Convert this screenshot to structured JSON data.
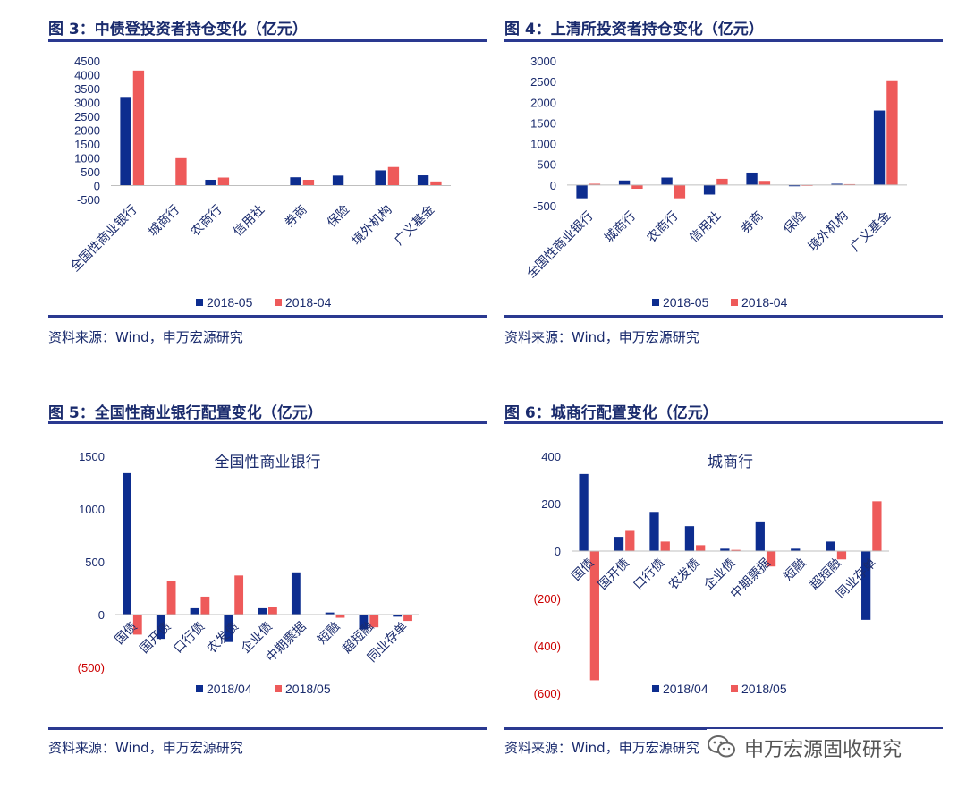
{
  "colors": {
    "series1": "#0d2d8f",
    "series2": "#ee5a5a",
    "negative_tick": "#cc0000",
    "rule": "#2a3990",
    "title": "#1a2b6d"
  },
  "charts": [
    {
      "figure_title": "图 3：中债登投资者持仓变化（亿元）",
      "source": "资料来源：Wind，申万宏源研究",
      "chart_data": {
        "type": "bar",
        "title": "",
        "categories": [
          "全国性商业银行",
          "城商行",
          "农商行",
          "信用社",
          "券商",
          "保险",
          "境外机构",
          "广义基金"
        ],
        "series": [
          {
            "name": "2018-05",
            "values": [
              3200,
              0,
              210,
              0,
              300,
              360,
              550,
              370
            ]
          },
          {
            "name": "2018-04",
            "values": [
              4150,
              990,
              290,
              0,
              210,
              0,
              670,
              150
            ]
          }
        ],
        "ylim": [
          -500,
          4500
        ],
        "yticks": [
          -500,
          0,
          500,
          1000,
          1500,
          2000,
          2500,
          3000,
          3500,
          4000,
          4500
        ],
        "ytick_labels": [
          "-500",
          "0",
          "500",
          "1000",
          "1500",
          "2000",
          "2500",
          "3000",
          "3500",
          "4000",
          "4500"
        ],
        "legend": "bottom"
      }
    },
    {
      "figure_title": "图 4：上清所投资者持仓变化（亿元）",
      "source": "资料来源：Wind，申万宏源研究",
      "chart_data": {
        "type": "bar",
        "title": "",
        "categories": [
          "全国性商业银行",
          "城商行",
          "农商行",
          "信用社",
          "券商",
          "保险",
          "境外机构",
          "广义基金"
        ],
        "series": [
          {
            "name": "2018-05",
            "values": [
              -320,
              110,
              180,
              -230,
              300,
              -30,
              30,
              1800
            ]
          },
          {
            "name": "2018-04",
            "values": [
              30,
              -90,
              -320,
              150,
              100,
              -20,
              20,
              2530
            ]
          }
        ],
        "ylim": [
          -500,
          3000
        ],
        "yticks": [
          -500,
          0,
          500,
          1000,
          1500,
          2000,
          2500,
          3000
        ],
        "ytick_labels": [
          "-500",
          "0",
          "500",
          "1000",
          "1500",
          "2000",
          "2500",
          "3000"
        ],
        "legend": "bottom"
      }
    },
    {
      "figure_title": "图 5：全国性商业银行配置变化（亿元）",
      "source": "资料来源：Wind，申万宏源研究",
      "chart_data": {
        "type": "bar",
        "title": "全国性商业银行",
        "categories": [
          "国债",
          "国开债",
          "口行债",
          "农发债",
          "企业债",
          "中期票据",
          "短融",
          "超短融",
          "同业存单"
        ],
        "series": [
          {
            "name": "2018/04",
            "values": [
              1340,
              -230,
              60,
              -260,
              60,
              400,
              20,
              -140,
              -20
            ]
          },
          {
            "name": "2018/05",
            "values": [
              -190,
              320,
              170,
              370,
              70,
              0,
              -30,
              -120,
              -60
            ]
          }
        ],
        "ylim": [
          -500,
          1500
        ],
        "yticks": [
          -500,
          0,
          500,
          1000,
          1500
        ],
        "ytick_labels": [
          "(500)",
          "0",
          "500",
          "1000",
          "1500"
        ],
        "legend": "bottom"
      }
    },
    {
      "figure_title": "图 6：城商行配置变化（亿元）",
      "source": "资料来源：Wind，申万宏源研究",
      "chart_data": {
        "type": "bar",
        "title": "城商行",
        "categories": [
          "国债",
          "国开债",
          "口行债",
          "农发债",
          "企业债",
          "中期票据",
          "短融",
          "超短融",
          "同业存单"
        ],
        "series": [
          {
            "name": "2018/04",
            "values": [
              325,
              60,
              165,
              105,
              10,
              125,
              10,
              40,
              -290
            ]
          },
          {
            "name": "2018/05",
            "values": [
              -545,
              85,
              40,
              25,
              5,
              -65,
              0,
              -35,
              210
            ]
          }
        ],
        "ylim": [
          -600,
          400
        ],
        "yticks": [
          -600,
          -400,
          -200,
          0,
          200,
          400
        ],
        "ytick_labels": [
          "(600)",
          "(400)",
          "(200)",
          "0",
          "200",
          "400"
        ],
        "legend": "bottom"
      }
    }
  ],
  "watermark": {
    "text": "申万宏源固收研究",
    "icon": "wechat-icon"
  }
}
